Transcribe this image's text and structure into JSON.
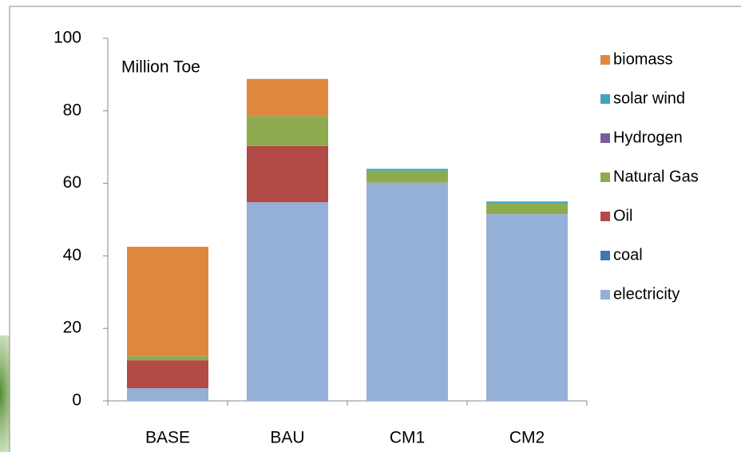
{
  "chart_data": {
    "type": "stacked_bar",
    "annotation": "Million Toe",
    "categories": [
      "BASE",
      "BAU",
      "CM1",
      "CM2"
    ],
    "series": [
      {
        "name": "electricity",
        "color": "#95b0d6",
        "values": [
          3.5,
          54.8,
          60.2,
          51.5
        ]
      },
      {
        "name": "coal",
        "color": "#4473b5",
        "values": [
          0,
          0,
          0,
          0
        ]
      },
      {
        "name": "Oil",
        "color": "#b24a46",
        "values": [
          7.7,
          15.5,
          0,
          0
        ]
      },
      {
        "name": "Natural Gas",
        "color": "#8eab4f",
        "values": [
          1.1,
          8.3,
          3.3,
          3
        ]
      },
      {
        "name": "Hydrogen",
        "color": "#7a5c9c",
        "values": [
          0,
          0,
          0,
          0
        ]
      },
      {
        "name": "solar wind",
        "color": "#3fa4bb",
        "values": [
          0,
          0,
          0.5,
          0.5
        ]
      },
      {
        "name": "biomass",
        "color": "#e0873f",
        "values": [
          30.2,
          10.2,
          0,
          0
        ]
      }
    ],
    "ylim": [
      0,
      100
    ],
    "yticks": [
      0,
      20,
      40,
      60,
      80,
      100
    ],
    "grid": false,
    "legend": "right"
  }
}
